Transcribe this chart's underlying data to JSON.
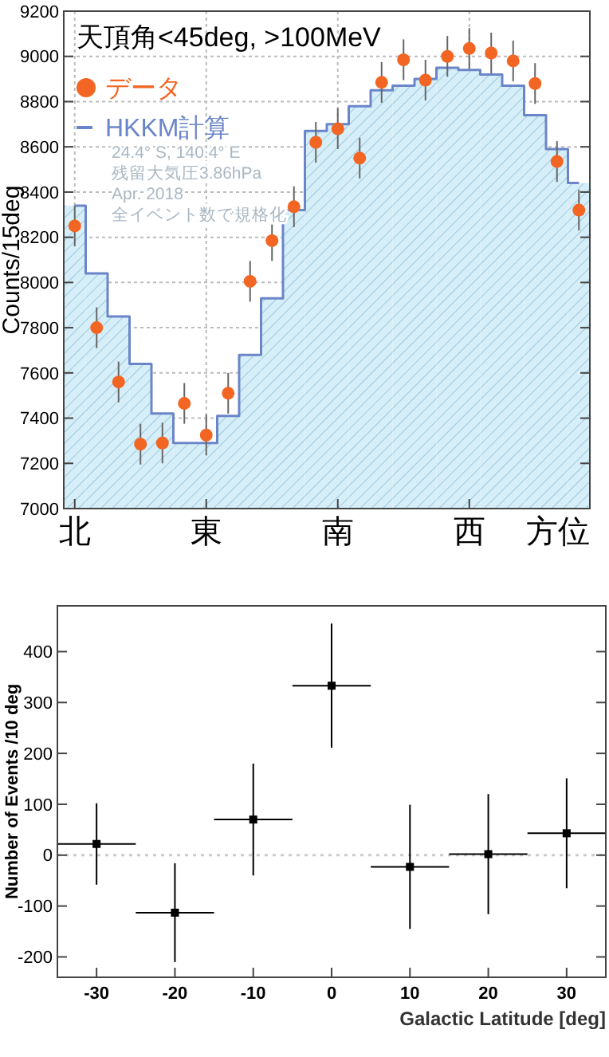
{
  "chart_data": [
    {
      "type": "scatter",
      "title": "天頂角<45deg, >100MeV",
      "xlabel": "方位",
      "ylabel": "Counts/15deg",
      "categories": [
        "北",
        null,
        null,
        null,
        null,
        null,
        "東",
        null,
        null,
        null,
        null,
        null,
        "南",
        null,
        null,
        null,
        null,
        null,
        "西",
        null,
        null,
        null,
        null,
        null
      ],
      "ylim": [
        7000,
        9200
      ],
      "yticks": [
        7000,
        7200,
        7400,
        7600,
        7800,
        8000,
        8200,
        8400,
        8600,
        8800,
        9000,
        9200
      ],
      "grid": true,
      "legend": "top left",
      "series": [
        {
          "type": "bar",
          "color": "#d6eef8",
          "values": [
            8340,
            8040,
            7850,
            7640,
            7420,
            7290,
            7290,
            7410,
            7680,
            7930,
            8320,
            8670,
            8700,
            8780,
            8850,
            8870,
            8900,
            8950,
            8940,
            8920,
            8870,
            8740,
            8590,
            8440
          ]
        },
        {
          "name": "HKKM計算",
          "type": "step",
          "color": "#6b86c8",
          "values": [
            8340,
            8040,
            7850,
            7640,
            7420,
            7290,
            7290,
            7410,
            7680,
            7930,
            8320,
            8670,
            8700,
            8780,
            8850,
            8870,
            8900,
            8950,
            8940,
            8920,
            8870,
            8740,
            8590,
            8440
          ]
        },
        {
          "name": "データ",
          "marker": "circle",
          "color": "#f26522",
          "values": [
            8250,
            7800,
            7560,
            7285,
            7290,
            7465,
            7325,
            7510,
            8005,
            8185,
            8335,
            8620,
            8680,
            8550,
            8885,
            8985,
            8895,
            9000,
            9035,
            9015,
            8980,
            8880,
            8535,
            8320
          ],
          "errors": [
            90,
            90,
            90,
            90,
            90,
            90,
            90,
            90,
            90,
            90,
            90,
            90,
            90,
            90,
            90,
            90,
            90,
            90,
            90,
            90,
            90,
            90,
            90,
            90
          ]
        }
      ],
      "annotations": [
        "24.4° S, 140.4° E",
        "残留大気圧3.86hPa",
        "Apr. 2018",
        "全イベント数で規格化"
      ]
    },
    {
      "type": "scatter",
      "xlabel": "Galactic Latitude [deg]",
      "ylabel": "Number of Events /10 deg",
      "xlim": [
        -35,
        35
      ],
      "xticks": [
        -30,
        -20,
        -10,
        0,
        10,
        20,
        30
      ],
      "ylim": [
        -240,
        490
      ],
      "yticks": [
        -200,
        -100,
        0,
        100,
        200,
        300,
        400
      ],
      "marker": "square",
      "series": [
        {
          "color": "#000000",
          "x": [
            -30,
            -20,
            -10,
            0,
            10,
            20,
            30
          ],
          "values": [
            22,
            -113,
            70,
            333,
            -23,
            2,
            43
          ],
          "errors": [
            80,
            97,
            110,
            122,
            122,
            118,
            108
          ],
          "xerrors": [
            5,
            5,
            5,
            5,
            5,
            5,
            5
          ]
        }
      ],
      "ref_lines": [
        {
          "axis": "y",
          "value": 0,
          "color": "#cccccc",
          "line_style": "dotted"
        }
      ]
    }
  ]
}
